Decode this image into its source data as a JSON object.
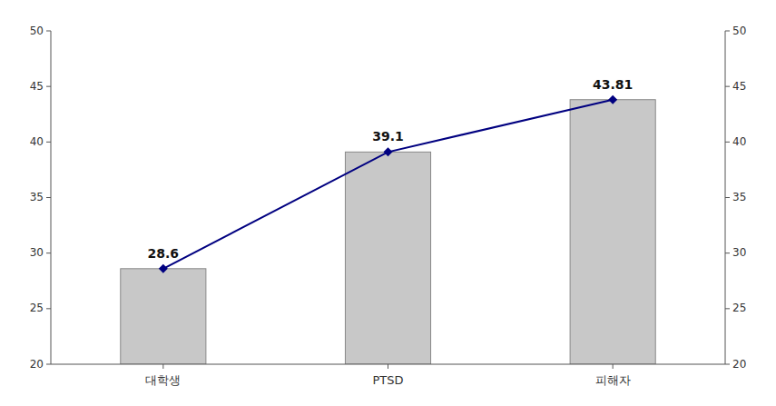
{
  "chart_data": {
    "type": "bar",
    "categories": [
      "대학생",
      "PTSD",
      "피해자"
    ],
    "series": [
      {
        "type": "bar",
        "color": "#c8c8c8",
        "values": [
          28.6,
          39.1,
          43.81
        ]
      },
      {
        "type": "line",
        "color": "#000080",
        "marker": "diamond",
        "data_labels": true,
        "values": [
          28.6,
          39.1,
          43.81
        ]
      }
    ],
    "ylim": [
      20,
      50
    ],
    "yticks": [
      20,
      25,
      30,
      35,
      40,
      45,
      50
    ],
    "y2lim": [
      20,
      50
    ],
    "y2ticks": [
      20,
      25,
      30,
      35,
      40,
      45,
      50
    ],
    "grid": false
  }
}
